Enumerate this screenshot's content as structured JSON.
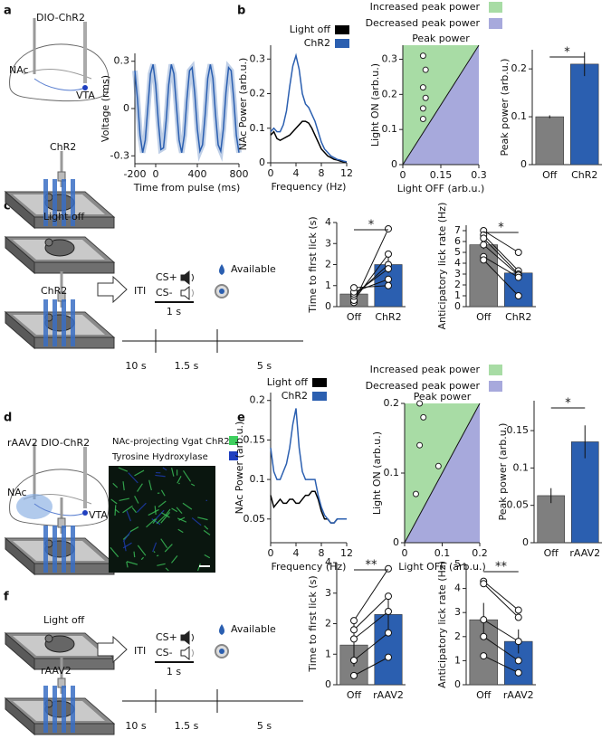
{
  "panel_labels": [
    "a",
    "b",
    "c",
    "d",
    "e",
    "f"
  ],
  "diagram_a": {
    "virus": "DIO-ChR2",
    "region1": "NAc",
    "region2": "VTA",
    "group": "ChR2"
  },
  "diagram_c": {
    "group1": "Light off",
    "group2": "ChR2",
    "iti": "ITI",
    "cs_plus": "CS+",
    "cs_minus": "CS-",
    "cue_duration": "1 s",
    "available": "Available",
    "timeline": [
      "10 s",
      "1.5 s",
      "5 s"
    ]
  },
  "diagram_d": {
    "virus": "rAAV2 DIO-ChR2",
    "region1": "NAc",
    "region2": "VTA",
    "stain_legend": [
      {
        "name": "NAc-projecting Vgat ChR2",
        "color": "#3ecf5e"
      },
      {
        "name": "Tyrosine Hydroxylase",
        "color": "#1f3fbf"
      }
    ]
  },
  "diagram_f": {
    "group1": "Light off",
    "group2": "rAAV2",
    "iti": "ITI",
    "cs_plus": "CS+",
    "cs_minus": "CS-",
    "cue_duration": "1 s",
    "available": "Available",
    "timeline": [
      "10 s",
      "1.5 s",
      "5 s"
    ]
  },
  "chart_data": [
    {
      "type": "line",
      "xlabel": "Time from pulse (ms)",
      "ylabel": "Voltage (rms)",
      "x": [
        -200,
        -175,
        -150,
        -125,
        -100,
        -75,
        -50,
        -25,
        0,
        25,
        50,
        75,
        100,
        125,
        150,
        175,
        200,
        225,
        250,
        275,
        300,
        325,
        350,
        375,
        400,
        425,
        450,
        475,
        500,
        525,
        550,
        575,
        600,
        625,
        650,
        675,
        700,
        725,
        750,
        775,
        800
      ],
      "values": [
        0.24,
        0.06,
        -0.17,
        -0.28,
        -0.2,
        0.01,
        0.22,
        0.28,
        0.15,
        -0.08,
        -0.26,
        -0.25,
        -0.08,
        0.15,
        0.28,
        0.22,
        0.01,
        -0.2,
        -0.28,
        -0.17,
        0.06,
        0.24,
        0.26,
        0.1,
        -0.13,
        -0.27,
        -0.23,
        -0.04,
        0.19,
        0.28,
        0.19,
        -0.04,
        -0.23,
        -0.27,
        -0.13,
        0.1,
        0.26,
        0.24,
        0.06,
        -0.17,
        -0.28
      ],
      "color": "#2b5fb0",
      "xlim": [
        -200,
        800
      ],
      "xticks": [
        -200,
        0,
        400,
        800
      ],
      "ylim": [
        -0.35,
        0.35
      ],
      "yticks": [
        -0.3,
        0,
        0.3
      ]
    },
    {
      "type": "line",
      "xlabel": "Frequency (Hz)",
      "ylabel": "NAc Power (arb.u.)",
      "x": [
        0,
        0.5,
        1,
        1.5,
        2,
        2.5,
        3,
        3.5,
        4,
        4.5,
        5,
        5.5,
        6,
        6.5,
        7,
        7.5,
        8,
        8.5,
        9,
        9.5,
        10,
        10.5,
        11,
        11.5,
        12
      ],
      "series": [
        {
          "name": "Light off",
          "color": "#000000",
          "values": [
            0.08,
            0.09,
            0.07,
            0.065,
            0.07,
            0.075,
            0.08,
            0.09,
            0.1,
            0.11,
            0.12,
            0.12,
            0.115,
            0.1,
            0.08,
            0.06,
            0.04,
            0.03,
            0.02,
            0.015,
            0.01,
            0.008,
            0.005,
            0.003,
            0.002
          ]
        },
        {
          "name": "ChR2",
          "color": "#2b5fb0",
          "values": [
            0.09,
            0.1,
            0.09,
            0.09,
            0.11,
            0.15,
            0.22,
            0.28,
            0.31,
            0.27,
            0.2,
            0.17,
            0.16,
            0.14,
            0.12,
            0.09,
            0.06,
            0.04,
            0.03,
            0.02,
            0.015,
            0.01,
            0.008,
            0.005,
            0.003
          ]
        }
      ],
      "xlim": [
        0,
        12
      ],
      "xticks": [
        0,
        4,
        8,
        12
      ],
      "ylim": [
        0,
        0.34
      ],
      "yticks": [
        0,
        0.1,
        0.2,
        0.3
      ]
    },
    {
      "type": "scatter",
      "title": "Peak power",
      "xlabel": "Light OFF (arb.u.)",
      "ylabel": "Light ON (arb.u.)",
      "regions": [
        {
          "name": "Increased peak power",
          "color": "#a8dca5"
        },
        {
          "name": "Decreased peak power",
          "color": "#a7a9dc"
        }
      ],
      "x": [
        0.08,
        0.09,
        0.08,
        0.09,
        0.08,
        0.08
      ],
      "y": [
        0.31,
        0.27,
        0.22,
        0.19,
        0.16,
        0.13
      ],
      "xlim": [
        0,
        0.3
      ],
      "xticks": [
        0,
        0.15,
        0.3
      ],
      "ylim": [
        0,
        0.34
      ],
      "yticks": [
        0,
        0.1,
        0.2,
        0.3
      ]
    },
    {
      "type": "bar",
      "ylabel": "Peak power (arb.u.)",
      "categories": [
        "Off",
        "ChR2"
      ],
      "values": [
        0.1,
        0.21
      ],
      "errors": [
        0.003,
        0.025
      ],
      "colors": [
        "#7f7f7f",
        "#2b5fb0"
      ],
      "significance": "*",
      "ylim": [
        0,
        0.24
      ],
      "yticks": [
        0,
        0.1,
        0.2
      ]
    },
    {
      "type": "bar",
      "ylabel": "Time to first lick (s)",
      "categories": [
        "Off",
        "ChR2"
      ],
      "values": [
        0.6,
        2.0
      ],
      "errors": [
        0.1,
        0.4
      ],
      "points": [
        [
          0.2,
          0.3,
          0.5,
          0.6,
          0.7,
          0.9
        ],
        [
          3.7,
          2.5,
          2.0,
          1.8,
          1.3,
          1.0
        ]
      ],
      "colors": [
        "#7f7f7f",
        "#2b5fb0"
      ],
      "significance": "*",
      "ylim": [
        0,
        4
      ],
      "yticks": [
        0,
        1,
        2,
        3,
        4
      ]
    },
    {
      "type": "bar",
      "ylabel": "Anticipatory lick rate (Hz)",
      "categories": [
        "Off",
        "ChR2"
      ],
      "values": [
        5.7,
        3.1
      ],
      "errors": [
        0.4,
        0.4
      ],
      "points": [
        [
          7.0,
          6.6,
          6.3,
          5.7,
          4.6,
          4.3
        ],
        [
          5.0,
          3.3,
          3.0,
          2.9,
          2.7,
          1.0
        ]
      ],
      "colors": [
        "#7f7f7f",
        "#2b5fb0"
      ],
      "significance": "*",
      "ylim": [
        0,
        7.5
      ],
      "yticks": [
        0,
        1,
        2,
        3,
        4,
        5,
        6,
        7
      ]
    },
    {
      "type": "line",
      "xlabel": "Frequency (Hz)",
      "ylabel": "NAc Power (arb.u.)",
      "x": [
        0,
        0.5,
        1,
        1.5,
        2,
        2.5,
        3,
        3.5,
        4,
        4.5,
        5,
        5.5,
        6,
        6.5,
        7,
        7.5,
        8,
        8.5,
        9,
        9.5,
        10,
        10.5,
        11,
        11.5,
        12
      ],
      "series": [
        {
          "name": "Light off",
          "color": "#000000",
          "values": [
            0.08,
            0.065,
            0.07,
            0.075,
            0.07,
            0.07,
            0.075,
            0.075,
            0.07,
            0.07,
            0.075,
            0.08,
            0.08,
            0.085,
            0.085,
            0.075,
            0.06,
            0.05,
            0.05,
            0.045,
            0.045,
            0.05,
            0.05,
            0.05,
            0.05
          ]
        },
        {
          "name": "ChR2",
          "color": "#2b5fb0",
          "values": [
            0.14,
            0.11,
            0.1,
            0.1,
            0.11,
            0.12,
            0.14,
            0.17,
            0.19,
            0.14,
            0.11,
            0.1,
            0.1,
            0.1,
            0.1,
            0.08,
            0.065,
            0.055,
            0.05,
            0.045,
            0.045,
            0.05,
            0.05,
            0.05,
            0.05
          ]
        }
      ],
      "xlim": [
        0,
        12
      ],
      "xticks": [
        0,
        4,
        8,
        12
      ],
      "ylim": [
        0.02,
        0.21
      ],
      "yticks": [
        0.05,
        0.1,
        0.15,
        0.2
      ]
    },
    {
      "type": "scatter",
      "title": "Peak power",
      "xlabel": "Light OFF (arb.u.)",
      "ylabel": "Light ON (arb.u.)",
      "regions": [
        {
          "name": "Increased peak power",
          "color": "#a8dca5"
        },
        {
          "name": "Decreased peak power",
          "color": "#a7a9dc"
        }
      ],
      "x": [
        0.04,
        0.05,
        0.04,
        0.09,
        0.03
      ],
      "y": [
        0.2,
        0.18,
        0.14,
        0.11,
        0.07
      ],
      "xlim": [
        0,
        0.2
      ],
      "xticks": [
        0,
        0.1,
        0.2
      ],
      "ylim": [
        0,
        0.2
      ],
      "yticks": [
        0,
        0.1,
        0.2
      ]
    },
    {
      "type": "bar",
      "ylabel": "Peak power (arb.u.)",
      "categories": [
        "Off",
        "rAAV2"
      ],
      "values": [
        0.063,
        0.135
      ],
      "errors": [
        0.01,
        0.022
      ],
      "colors": [
        "#7f7f7f",
        "#2b5fb0"
      ],
      "significance": "*",
      "ylim": [
        0,
        0.19
      ],
      "yticks": [
        0,
        0.05,
        0.1,
        0.15
      ]
    },
    {
      "type": "bar",
      "ylabel": "Time to first lick (s)",
      "categories": [
        "Off",
        "rAAV2"
      ],
      "values": [
        1.3,
        2.3
      ],
      "errors": [
        0.7,
        0.6
      ],
      "points": [
        [
          2.1,
          1.8,
          1.5,
          0.8,
          0.3
        ],
        [
          3.8,
          2.9,
          2.4,
          1.7,
          0.9
        ]
      ],
      "colors": [
        "#7f7f7f",
        "#2b5fb0"
      ],
      "significance": "**",
      "ylim": [
        0,
        4
      ],
      "yticks": [
        0,
        1,
        2,
        3,
        4
      ]
    },
    {
      "type": "bar",
      "ylabel": "Anticipatory lick rate (Hz)",
      "categories": [
        "Off",
        "rAAV2"
      ],
      "values": [
        2.7,
        1.8
      ],
      "errors": [
        0.7,
        0.5
      ],
      "points": [
        [
          4.3,
          4.2,
          2.7,
          2.0,
          1.2
        ],
        [
          3.1,
          2.8,
          1.8,
          1.0,
          0.5
        ]
      ],
      "colors": [
        "#7f7f7f",
        "#2b5fb0"
      ],
      "significance": "**",
      "ylim": [
        0,
        5
      ],
      "yticks": [
        0,
        1,
        2,
        3,
        4,
        5
      ]
    }
  ]
}
